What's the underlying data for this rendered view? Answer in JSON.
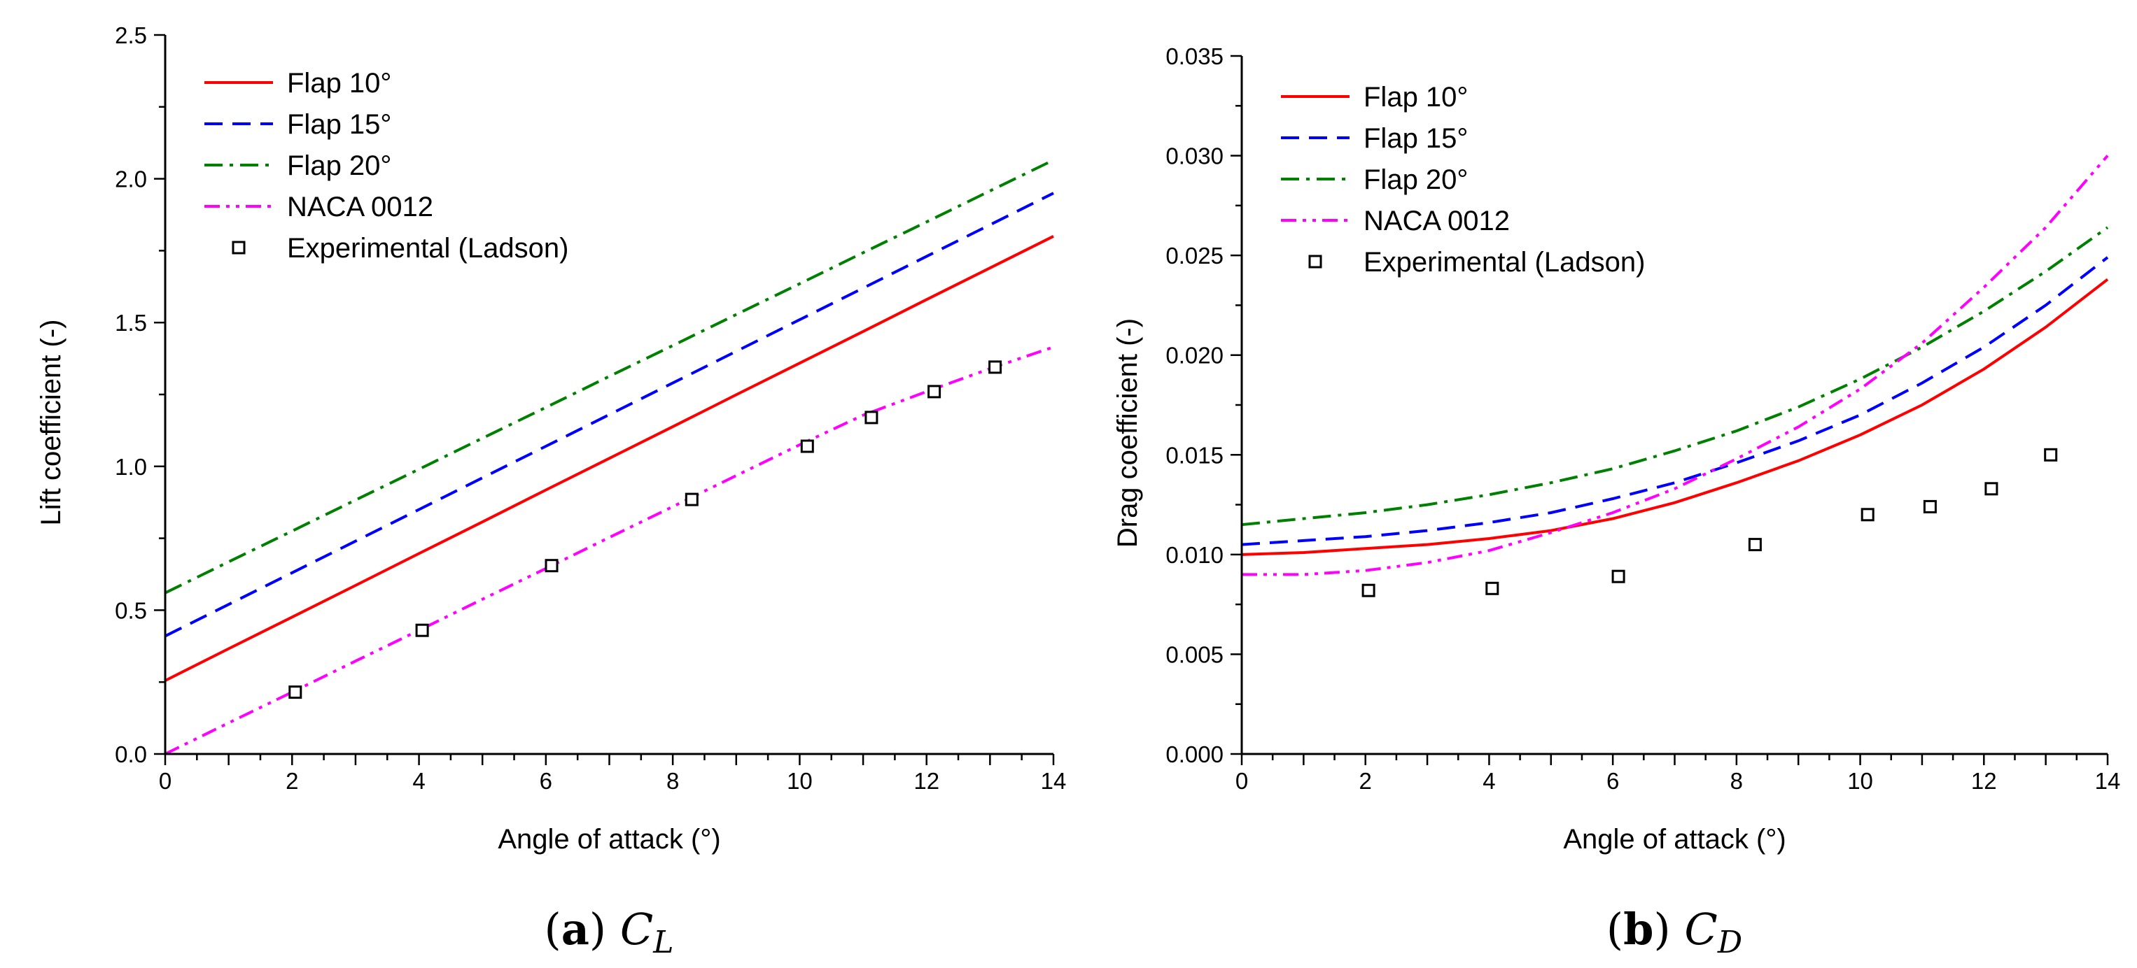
{
  "chart_data": [
    {
      "type": "line",
      "caption": {
        "letter": "a",
        "symbol": "C",
        "subscript": "L"
      },
      "xlabel": "Angle of attack (°)",
      "ylabel": "Lift coefficient (-)",
      "xlim": [
        0,
        14
      ],
      "ylim": [
        0,
        2.5
      ],
      "xticks": [
        0,
        2,
        4,
        6,
        8,
        10,
        12,
        14
      ],
      "yticks": [
        "0.0",
        "0.5",
        "1.0",
        "1.5",
        "2.0",
        "2.5"
      ],
      "grid": false,
      "legend_position": "top-left",
      "x": [
        0,
        1,
        2,
        3,
        4,
        5,
        6,
        7,
        8,
        9,
        10,
        11,
        12,
        13,
        14
      ],
      "series": [
        {
          "name": "Flap 10°",
          "color": "#ff0000",
          "style": "solid",
          "values": [
            0.255,
            0.366,
            0.476,
            0.586,
            0.697,
            0.807,
            0.918,
            1.028,
            1.138,
            1.249,
            1.359,
            1.469,
            1.58,
            1.69,
            1.8
          ]
        },
        {
          "name": "Flap 15°",
          "color": "#0000ff",
          "style": "dash",
          "values": [
            0.41,
            0.52,
            0.63,
            0.74,
            0.85,
            0.96,
            1.07,
            1.18,
            1.29,
            1.4,
            1.51,
            1.62,
            1.73,
            1.84,
            1.95
          ]
        },
        {
          "name": "Flap 20°",
          "color": "#008000",
          "style": "dashdot",
          "values": [
            0.56,
            0.668,
            0.775,
            0.883,
            0.99,
            1.098,
            1.205,
            1.313,
            1.42,
            1.528,
            1.635,
            1.743,
            1.85,
            1.958,
            2.065
          ]
        },
        {
          "name": "NACA 0012",
          "color": "#ff00ff",
          "style": "dashdotdot",
          "values": [
            0.0,
            0.108,
            0.215,
            0.323,
            0.43,
            0.538,
            0.645,
            0.753,
            0.86,
            0.968,
            1.075,
            1.178,
            1.26,
            1.34,
            1.415
          ]
        }
      ],
      "scatter": {
        "name": "Experimental (Ladson)",
        "x": [
          2.05,
          4.05,
          6.09,
          8.3,
          10.12,
          11.13,
          12.12,
          13.08
        ],
        "y": [
          0.215,
          0.43,
          0.655,
          0.885,
          1.07,
          1.17,
          1.26,
          1.345
        ]
      }
    },
    {
      "type": "line",
      "caption": {
        "letter": "b",
        "symbol": "C",
        "subscript": "D"
      },
      "xlabel": "Angle of attack (°)",
      "ylabel": "Drag coefficient (-)",
      "xlim": [
        0,
        14
      ],
      "ylim": [
        0,
        0.035
      ],
      "xticks": [
        0,
        2,
        4,
        6,
        8,
        10,
        12,
        14
      ],
      "yticks": [
        "0.000",
        "0.005",
        "0.010",
        "0.015",
        "0.020",
        "0.025",
        "0.030",
        "0.035"
      ],
      "grid": false,
      "legend_position": "top-left",
      "x": [
        0,
        1,
        2,
        3,
        4,
        5,
        6,
        7,
        8,
        9,
        10,
        11,
        12,
        13,
        14
      ],
      "series": [
        {
          "name": "Flap 10°",
          "color": "#ff0000",
          "style": "solid",
          "values": [
            0.01,
            0.0101,
            0.0103,
            0.0105,
            0.0108,
            0.0112,
            0.0118,
            0.0126,
            0.0136,
            0.0147,
            0.016,
            0.0175,
            0.0193,
            0.0214,
            0.0238
          ]
        },
        {
          "name": "Flap 15°",
          "color": "#0000ff",
          "style": "dash",
          "values": [
            0.0105,
            0.0107,
            0.0109,
            0.0112,
            0.0116,
            0.0121,
            0.0128,
            0.0136,
            0.0146,
            0.0157,
            0.017,
            0.0186,
            0.0204,
            0.0225,
            0.0249
          ]
        },
        {
          "name": "Flap 20°",
          "color": "#008000",
          "style": "dashdot",
          "values": [
            0.0115,
            0.0118,
            0.0121,
            0.0125,
            0.013,
            0.0136,
            0.0143,
            0.0152,
            0.0162,
            0.0174,
            0.0188,
            0.0204,
            0.0222,
            0.0242,
            0.0264
          ]
        },
        {
          "name": "NACA 0012",
          "color": "#ff00ff",
          "style": "dashdotdot",
          "values": [
            0.009,
            0.009,
            0.0092,
            0.0096,
            0.0102,
            0.0111,
            0.0121,
            0.0133,
            0.0148,
            0.0164,
            0.0183,
            0.0206,
            0.0234,
            0.0264,
            0.03
          ]
        }
      ],
      "scatter": {
        "name": "Experimental (Ladson)",
        "x": [
          2.05,
          4.05,
          6.09,
          8.3,
          10.12,
          11.13,
          12.12,
          13.08
        ],
        "y": [
          0.0082,
          0.0083,
          0.0089,
          0.0105,
          0.012,
          0.0124,
          0.0133,
          0.015
        ]
      }
    }
  ]
}
